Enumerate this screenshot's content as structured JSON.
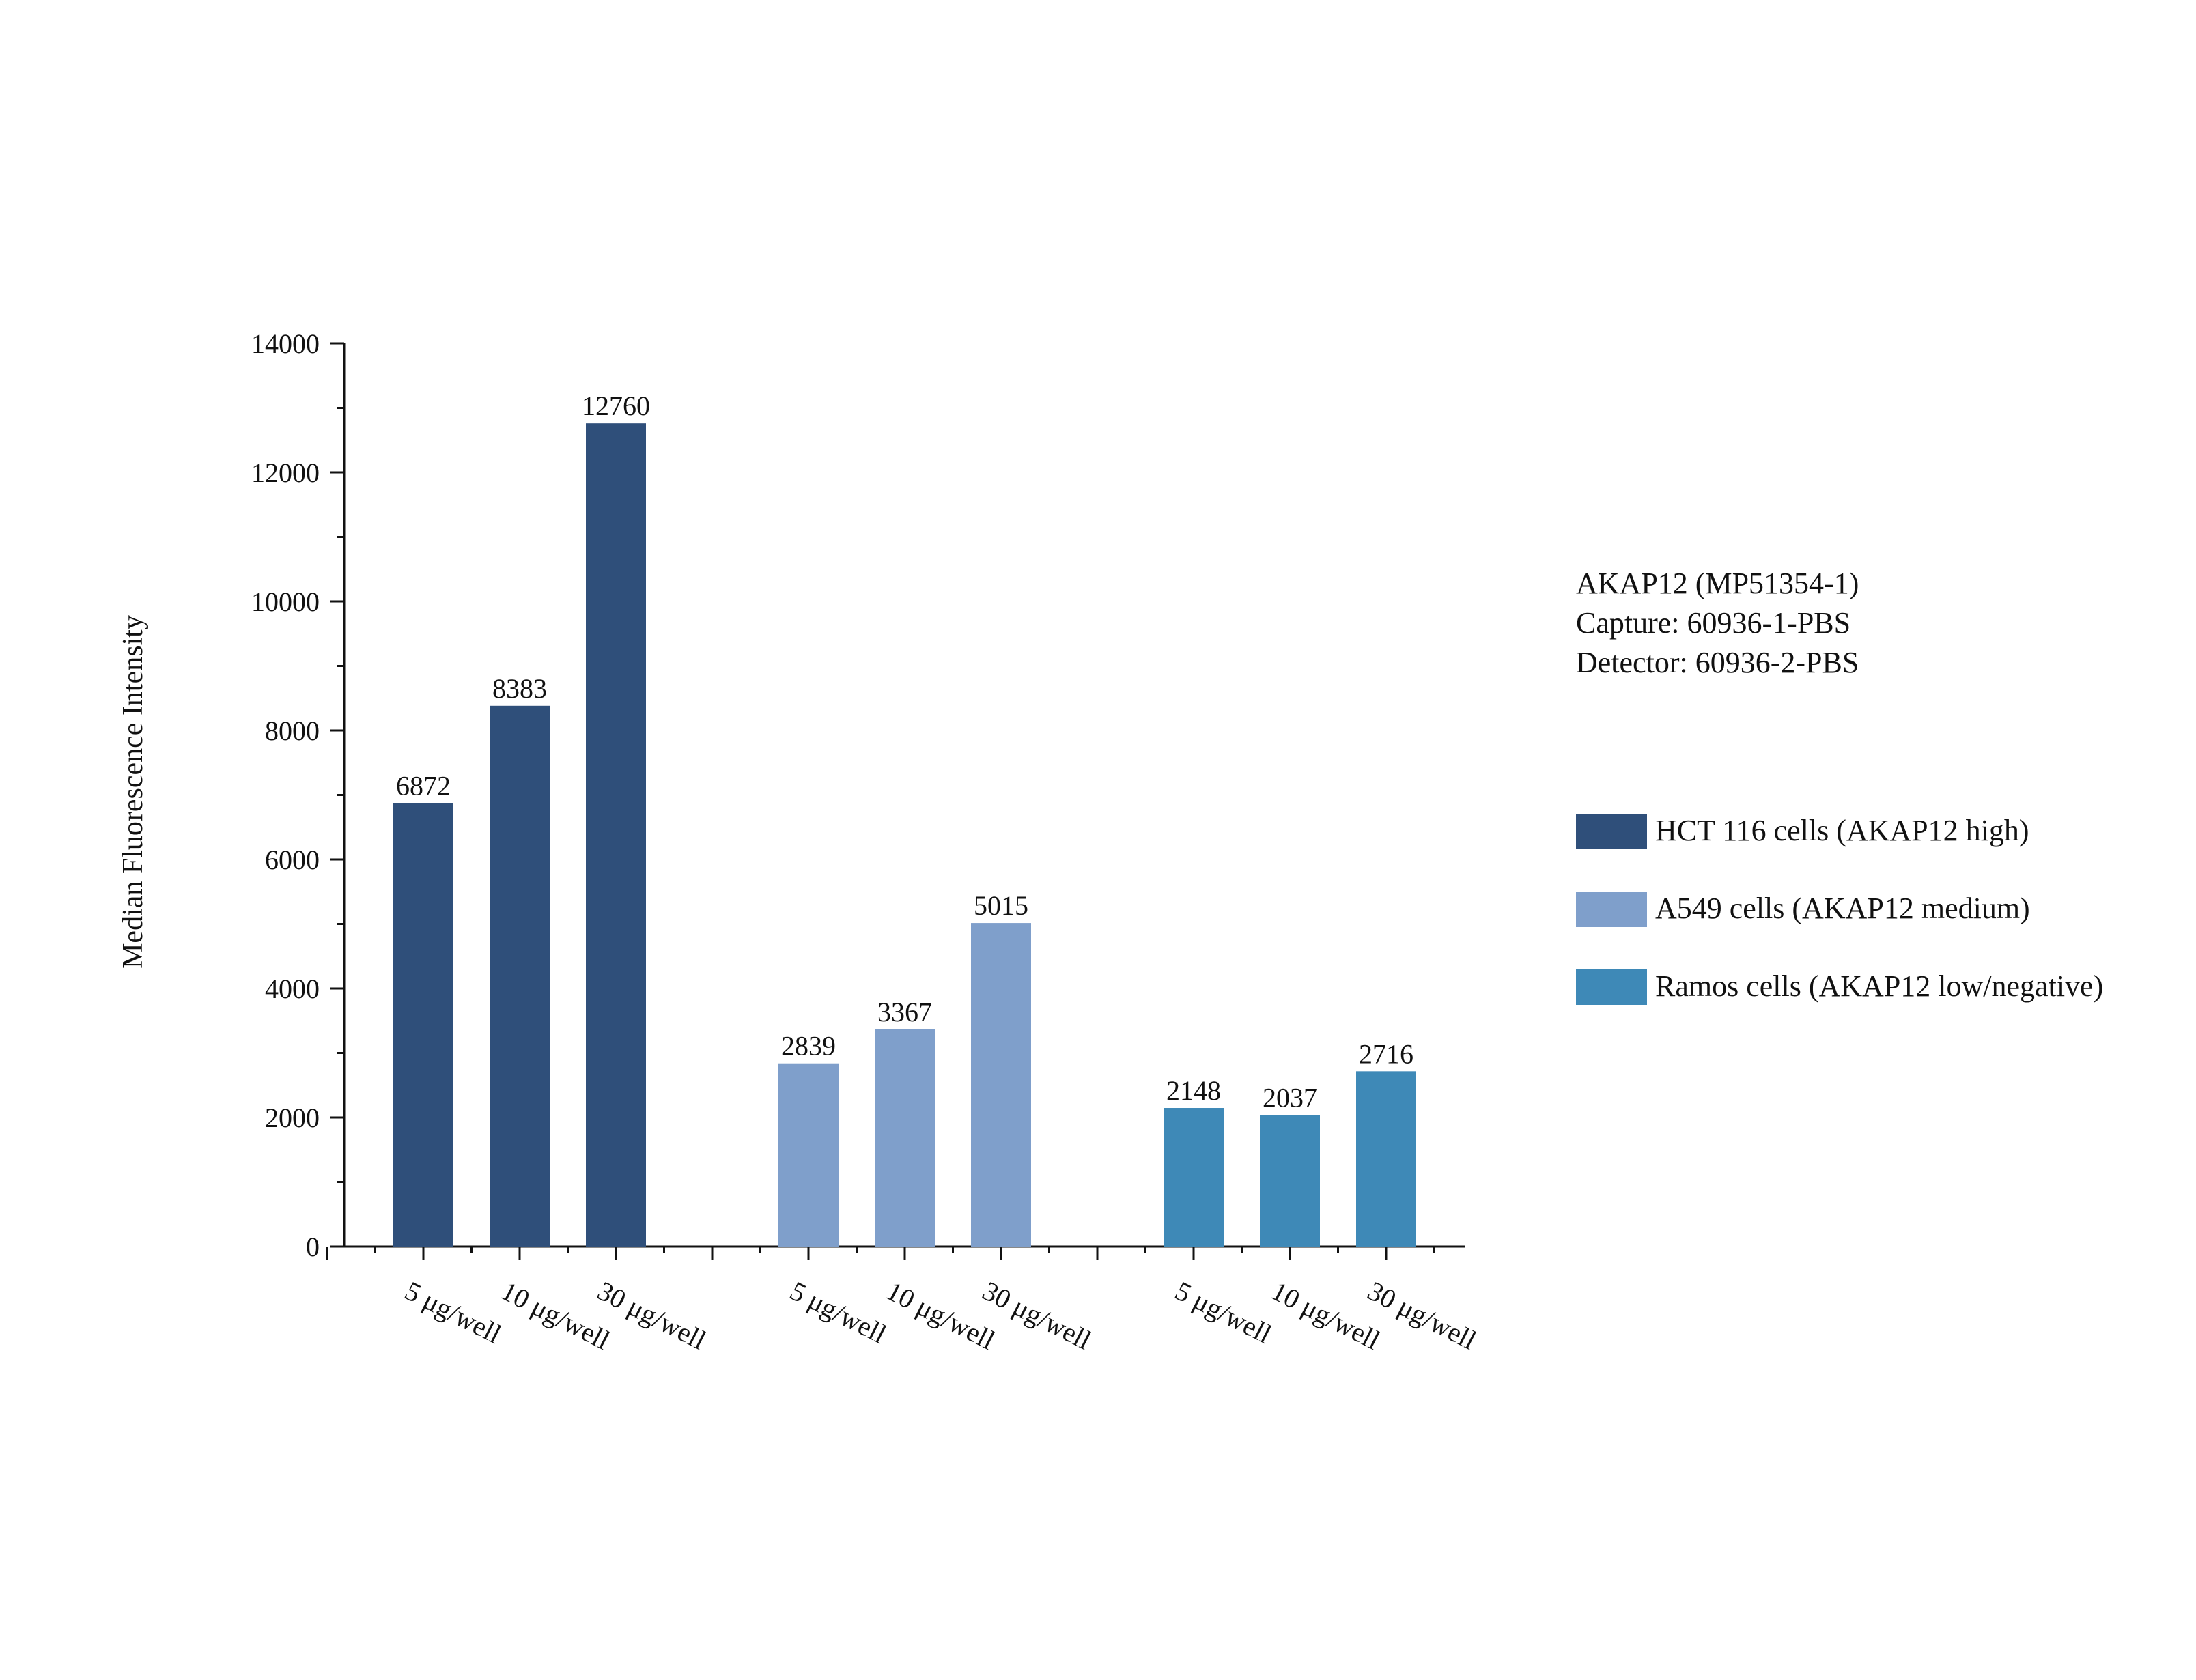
{
  "chart_data": {
    "type": "bar",
    "ylabel": "Median Fluorescence Intensity",
    "xlabel": "",
    "ylim": [
      0,
      14000
    ],
    "y_ticks": [
      "0",
      "2000",
      "4000",
      "6000",
      "8000",
      "10000",
      "12000",
      "14000"
    ],
    "groups": [
      {
        "name": "HCT 116 cells (AKAP12 high)",
        "color": "#2f4f7a",
        "categories": [
          "5 μg/well",
          "10 μg/well",
          "30 μg/well"
        ],
        "values": [
          6872,
          8383,
          12760
        ],
        "labels": [
          "6872",
          "8383",
          "12760"
        ]
      },
      {
        "name": "A549 cells (AKAP12 medium)",
        "color": "#7f9fcb",
        "categories": [
          "5 μg/well",
          "10 μg/well",
          "30 μg/well"
        ],
        "values": [
          2839,
          3367,
          5015
        ],
        "labels": [
          "2839",
          "3367",
          "5015"
        ]
      },
      {
        "name": "Ramos cells (AKAP12 low/negative)",
        "color": "#3e89b7",
        "categories": [
          "5 μg/well",
          "10 μg/well",
          "30 μg/well"
        ],
        "values": [
          2148,
          2037,
          2716
        ],
        "labels": [
          "2148",
          "2037",
          "2716"
        ]
      }
    ],
    "legend": [
      {
        "label": "HCT 116 cells (AKAP12 high)",
        "color": "#2f4f7a"
      },
      {
        "label": "A549 cells (AKAP12 medium)",
        "color": "#7f9fcb"
      },
      {
        "label": "Ramos cells (AKAP12 low/negative)",
        "color": "#3e89b7"
      }
    ],
    "annotation_lines": [
      "AKAP12 (MP51354-1)",
      "Capture: 60936-1-PBS",
      "Detector: 60936-2-PBS"
    ]
  }
}
